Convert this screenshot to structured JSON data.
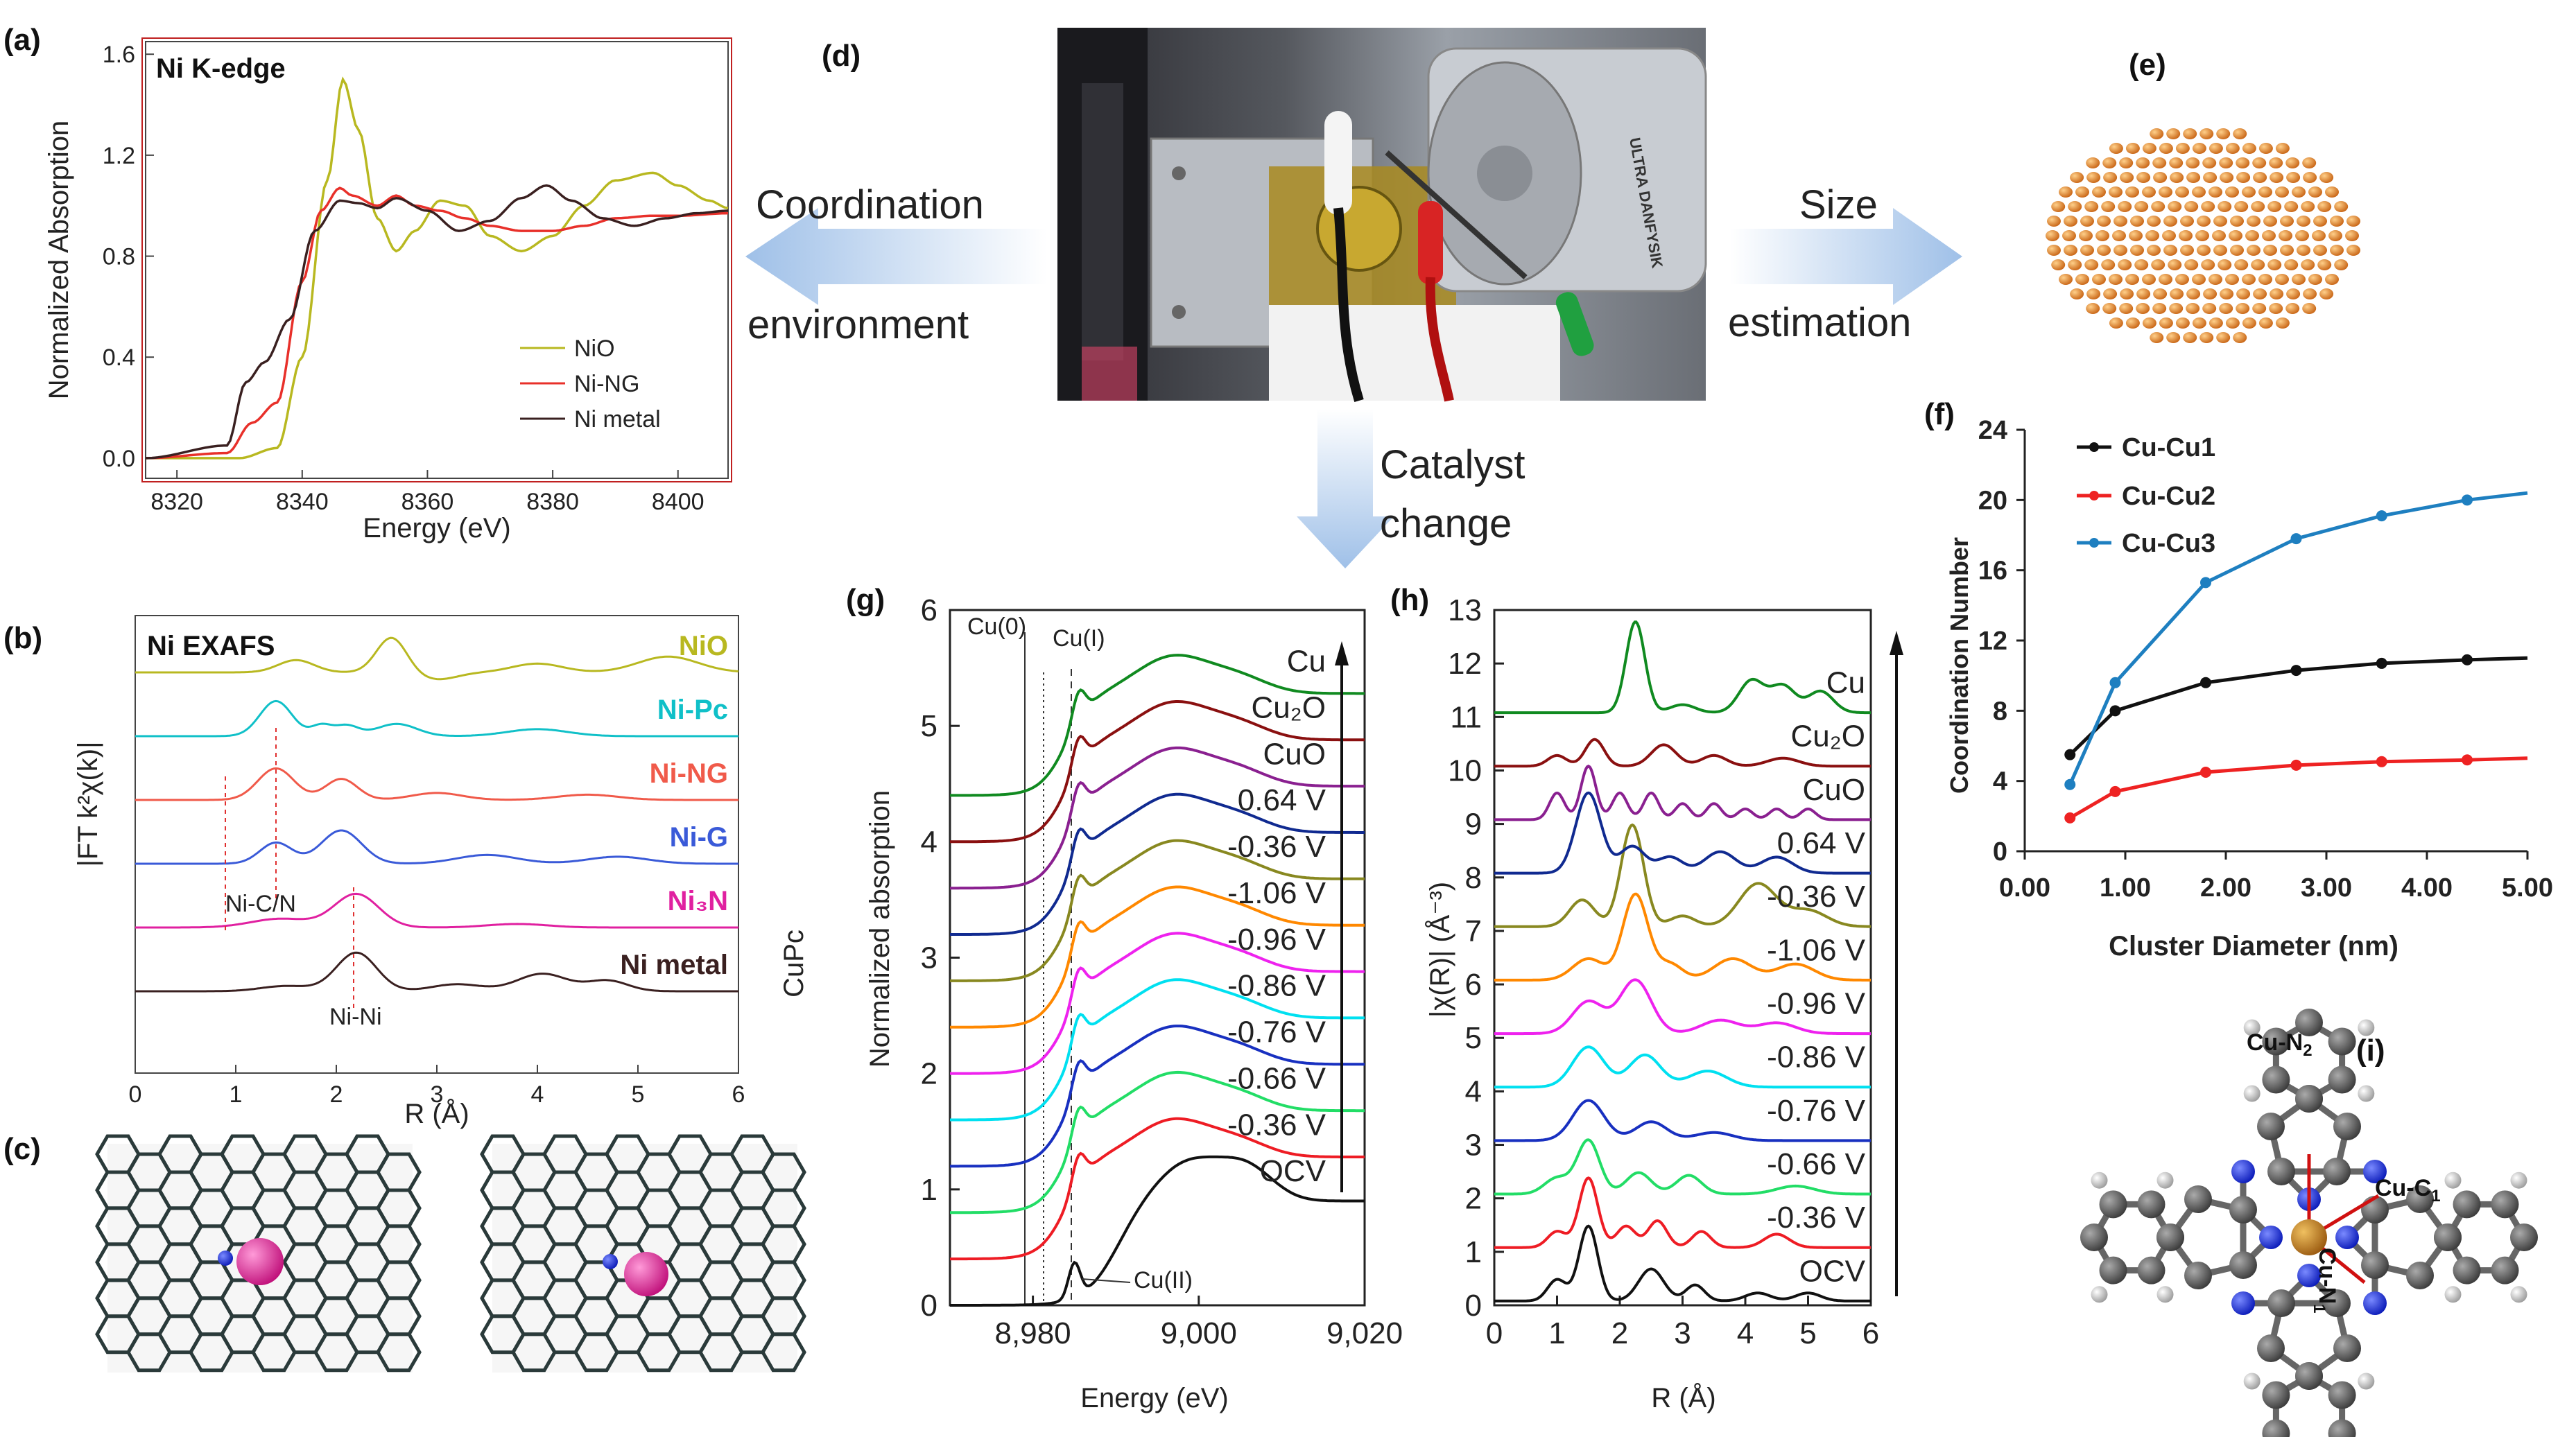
{
  "panels": {
    "a": "(a)",
    "b": "(b)",
    "c": "(c)",
    "d": "(d)",
    "e": "(e)",
    "f": "(f)",
    "g": "(g)",
    "h": "(h)",
    "i": "(i)"
  },
  "flow": {
    "left_line1": "Coordination",
    "left_line2": "environment",
    "right_line1": "Size",
    "right_line2": "estimation",
    "down_line1": "Catalyst",
    "down_line2": "change"
  },
  "photo": {
    "instrument_text": "ULTRA DANFYSIK"
  },
  "molecule_i": {
    "label_n2": "Cu-N2",
    "label_c1": "Cu-C1",
    "label_n1": "Cu-N1"
  },
  "chart_data": [
    {
      "id": "a",
      "type": "line",
      "title": "Ni K-edge",
      "xlabel": "Energy (eV)",
      "ylabel": "Normalized Absorption",
      "xlim": [
        8315,
        8408
      ],
      "ylim": [
        -0.08,
        1.65
      ],
      "xticks": [
        "8320",
        "8340",
        "8360",
        "8380",
        "8400"
      ],
      "yticks": [
        "0.0",
        "0.4",
        "0.8",
        "1.2",
        "1.6"
      ],
      "legend": [
        "NiO",
        "Ni-NG",
        "Ni metal"
      ],
      "series": [
        {
          "name": "NiO",
          "color": "#b8b820",
          "x": [
            8315,
            8330,
            8336,
            8340,
            8344,
            8346.5,
            8349,
            8352,
            8355,
            8358,
            8362,
            8366,
            8370,
            8375,
            8380,
            8385,
            8390,
            8396,
            8400,
            8405,
            8408
          ],
          "y": [
            0,
            0,
            0.04,
            0.4,
            1.1,
            1.5,
            1.3,
            0.95,
            0.82,
            0.9,
            1.02,
            1.0,
            0.88,
            0.82,
            0.88,
            1.0,
            1.1,
            1.13,
            1.08,
            1.02,
            0.99
          ]
        },
        {
          "name": "Ni-NG",
          "color": "#e8302a",
          "x": [
            8315,
            8328,
            8332,
            8336,
            8340,
            8343,
            8346,
            8348,
            8352,
            8355,
            8358,
            8362,
            8366,
            8370,
            8375,
            8380,
            8385,
            8390,
            8396,
            8400,
            8408
          ],
          "y": [
            0,
            0.02,
            0.14,
            0.22,
            0.7,
            0.98,
            1.07,
            1.04,
            1.0,
            1.04,
            1.0,
            0.98,
            0.95,
            0.92,
            0.9,
            0.9,
            0.92,
            0.95,
            0.96,
            0.96,
            0.97
          ]
        },
        {
          "name": "Ni metal",
          "color": "#3a2020",
          "x": [
            8315,
            8328,
            8331,
            8334,
            8338,
            8342,
            8346,
            8349,
            8352,
            8355,
            8360,
            8365,
            8370,
            8375,
            8379,
            8383,
            8388,
            8393,
            8398,
            8403,
            8408
          ],
          "y": [
            0,
            0.05,
            0.3,
            0.38,
            0.55,
            0.9,
            1.02,
            1.01,
            0.99,
            1.03,
            0.98,
            0.9,
            0.94,
            1.03,
            1.08,
            1.02,
            0.95,
            0.92,
            0.95,
            0.97,
            0.98
          ]
        }
      ]
    },
    {
      "id": "b",
      "type": "line",
      "title": "Ni EXAFS",
      "xlabel": "R (Å)",
      "ylabel": "|FT k²χ(k)|",
      "xlim": [
        0,
        6
      ],
      "xticks": [
        "0",
        "1",
        "2",
        "3",
        "4",
        "5",
        "6"
      ],
      "annotations": [
        "Ni-C/N",
        "Ni-Ni"
      ],
      "series": [
        {
          "name": "NiO",
          "label": "NiO",
          "color": "#b8b820",
          "offset": 5,
          "peaks": [
            [
              1.6,
              0.35,
              0.18
            ],
            [
              2.55,
              1.0,
              0.15
            ],
            [
              3.0,
              -0.2,
              0.2
            ],
            [
              4.0,
              0.25,
              0.25
            ],
            [
              5.3,
              0.45,
              0.3
            ]
          ]
        },
        {
          "name": "Ni-Pc",
          "label": "Ni-Pc",
          "color": "#10c0c8",
          "offset": 4,
          "peaks": [
            [
              1.4,
              1.0,
              0.16
            ],
            [
              1.85,
              0.3,
              0.1
            ],
            [
              2.1,
              0.3,
              0.12
            ],
            [
              2.6,
              0.35,
              0.2
            ],
            [
              4.0,
              0.2,
              0.3
            ]
          ]
        },
        {
          "name": "Ni-NG",
          "label": "Ni-NG",
          "color": "#f05a4a",
          "offset": 3,
          "peaks": [
            [
              1.4,
              0.9,
              0.18
            ],
            [
              2.05,
              0.6,
              0.16
            ],
            [
              3.0,
              0.2,
              0.25
            ],
            [
              4.5,
              0.15,
              0.3
            ]
          ]
        },
        {
          "name": "Ni-G",
          "label": "Ni-G",
          "color": "#3a5ad8",
          "offset": 2,
          "peaks": [
            [
              1.4,
              0.6,
              0.16
            ],
            [
              2.05,
              0.95,
              0.2
            ],
            [
              3.5,
              0.25,
              0.3
            ],
            [
              4.8,
              0.2,
              0.3
            ]
          ]
        },
        {
          "name": "Ni3N",
          "label": "Ni₃N",
          "color": "#e020a0",
          "offset": 1,
          "peaks": [
            [
              1.45,
              0.25,
              0.3
            ],
            [
              2.2,
              0.95,
              0.22
            ],
            [
              3.8,
              0.1,
              0.3
            ]
          ]
        },
        {
          "name": "Ni metal",
          "label": "Ni metal",
          "color": "#3a2020",
          "offset": 0,
          "peaks": [
            [
              1.5,
              0.15,
              0.25
            ],
            [
              2.2,
              1.1,
              0.2
            ],
            [
              3.2,
              0.2,
              0.25
            ],
            [
              4.05,
              0.5,
              0.25
            ],
            [
              4.7,
              0.3,
              0.2
            ]
          ]
        }
      ]
    },
    {
      "id": "f",
      "type": "line",
      "xlabel": "Cluster Diameter (nm)",
      "ylabel": "Coordination Number",
      "xlim": [
        0,
        5
      ],
      "ylim": [
        0,
        24
      ],
      "xticks": [
        "0.00",
        "1.00",
        "2.00",
        "3.00",
        "4.00",
        "5.00"
      ],
      "yticks": [
        "0",
        "4",
        "8",
        "12",
        "16",
        "20",
        "24"
      ],
      "legend": [
        "Cu-Cu1",
        "Cu-Cu2",
        "Cu-Cu3"
      ],
      "series": [
        {
          "name": "Cu-Cu1",
          "color": "#111111",
          "x": [
            0.45,
            0.9,
            1.8,
            2.7,
            3.55,
            4.4,
            5.0
          ],
          "y": [
            5.5,
            8.0,
            9.6,
            10.3,
            10.7,
            10.9,
            11.0
          ]
        },
        {
          "name": "Cu-Cu2",
          "color": "#ee2222",
          "x": [
            0.45,
            0.9,
            1.8,
            2.7,
            3.55,
            4.4,
            5.0
          ],
          "y": [
            1.9,
            3.4,
            4.5,
            4.9,
            5.1,
            5.2,
            5.3
          ]
        },
        {
          "name": "Cu-Cu3",
          "color": "#1e7fc0",
          "x": [
            0.45,
            0.9,
            1.8,
            2.7,
            3.55,
            4.4,
            5.0
          ],
          "y": [
            3.8,
            9.6,
            15.3,
            17.8,
            19.1,
            20.0,
            20.4
          ]
        }
      ]
    },
    {
      "id": "g",
      "type": "line",
      "side_label": "CuPc",
      "xlabel": "Energy (eV)",
      "ylabel": "Normalized absorption",
      "xlim": [
        8970,
        9020
      ],
      "ylim": [
        0,
        6
      ],
      "xticks": [
        "8,980",
        "9,000",
        "9,020"
      ],
      "yticks": [
        "0",
        "1",
        "2",
        "3",
        "4",
        "5",
        "6"
      ],
      "annotations": [
        "Cu(0)",
        "Cu(I)",
        "Cu(II)"
      ],
      "series": [
        {
          "name": "OCV",
          "label": "OCV",
          "color": "#111111",
          "offset": 0.0
        },
        {
          "name": "-0.36 V",
          "label": "-0.36 V",
          "color": "#ee1c24",
          "offset": 0.4
        },
        {
          "name": "-0.66 V",
          "label": "-0.66 V",
          "color": "#22dd66",
          "offset": 0.8
        },
        {
          "name": "-0.76 V",
          "label": "-0.76 V",
          "color": "#1830c0",
          "offset": 1.2
        },
        {
          "name": "-0.86 V",
          "label": "-0.86 V",
          "color": "#00e0f0",
          "offset": 1.6
        },
        {
          "name": "-0.96 V",
          "label": "-0.96 V",
          "color": "#ee22ee",
          "offset": 2.0
        },
        {
          "name": "-1.06 V",
          "label": "-1.06 V",
          "color": "#ff8800",
          "offset": 2.4
        },
        {
          "name": "-0.36 V (reverse)",
          "label": "-0.36 V",
          "color": "#888820",
          "offset": 2.8
        },
        {
          "name": "0.64 V",
          "label": "0.64 V",
          "color": "#102a90",
          "offset": 3.2
        },
        {
          "name": "CuO",
          "label": "CuO",
          "color": "#8a2090",
          "offset": 3.6
        },
        {
          "name": "Cu2O",
          "label": "Cu₂O",
          "color": "#8a1010",
          "offset": 4.0
        },
        {
          "name": "Cu",
          "label": "Cu",
          "color": "#108a20",
          "offset": 4.4
        }
      ]
    },
    {
      "id": "h",
      "type": "line",
      "xlabel": "R (Å)",
      "ylabel": "|χ(R)| (Å⁻³)",
      "xlim": [
        0,
        6
      ],
      "ylim": [
        0,
        13
      ],
      "xticks": [
        "0",
        "1",
        "2",
        "3",
        "4",
        "5",
        "6"
      ],
      "yticks": [
        "0",
        "1",
        "2",
        "3",
        "4",
        "5",
        "6",
        "7",
        "8",
        "9",
        "10",
        "11",
        "12",
        "13"
      ],
      "series": [
        {
          "name": "OCV",
          "label": "OCV",
          "color": "#111111",
          "offset": 0,
          "peaks": [
            [
              1.0,
              0.4,
              0.15
            ],
            [
              1.5,
              1.4,
              0.15
            ],
            [
              2.5,
              0.6,
              0.2
            ],
            [
              3.2,
              0.3,
              0.15
            ],
            [
              4.2,
              0.15,
              0.2
            ],
            [
              5.0,
              0.15,
              0.2
            ]
          ]
        },
        {
          "name": "-0.36 V",
          "label": "-0.36 V",
          "color": "#ee1c24",
          "offset": 1,
          "peaks": [
            [
              1.0,
              0.3,
              0.15
            ],
            [
              1.5,
              1.3,
              0.15
            ],
            [
              2.1,
              0.4,
              0.15
            ],
            [
              2.6,
              0.5,
              0.15
            ],
            [
              3.3,
              0.3,
              0.15
            ],
            [
              4.5,
              0.25,
              0.2
            ]
          ]
        },
        {
          "name": "-0.66 V",
          "label": "-0.66 V",
          "color": "#22dd66",
          "offset": 2,
          "peaks": [
            [
              1.0,
              0.3,
              0.2
            ],
            [
              1.5,
              1.0,
              0.18
            ],
            [
              2.3,
              0.4,
              0.2
            ],
            [
              3.1,
              0.35,
              0.2
            ],
            [
              4.8,
              0.15,
              0.3
            ]
          ]
        },
        {
          "name": "-0.76 V",
          "label": "-0.76 V",
          "color": "#1830c0",
          "offset": 3,
          "peaks": [
            [
              1.5,
              0.75,
              0.25
            ],
            [
              2.5,
              0.35,
              0.25
            ],
            [
              3.5,
              0.15,
              0.3
            ]
          ]
        },
        {
          "name": "-0.86 V",
          "label": "-0.86 V",
          "color": "#00e0f0",
          "offset": 4,
          "peaks": [
            [
              1.5,
              0.75,
              0.25
            ],
            [
              2.4,
              0.6,
              0.25
            ],
            [
              3.4,
              0.3,
              0.3
            ]
          ]
        },
        {
          "name": "-0.96 V",
          "label": "-0.96 V",
          "color": "#ee22ee",
          "offset": 5,
          "peaks": [
            [
              1.5,
              0.6,
              0.25
            ],
            [
              2.25,
              1.0,
              0.25
            ],
            [
              3.6,
              0.25,
              0.3
            ],
            [
              4.5,
              0.2,
              0.3
            ]
          ]
        },
        {
          "name": "-1.06 V",
          "label": "-1.06 V",
          "color": "#ff8800",
          "offset": 6,
          "peaks": [
            [
              1.5,
              0.4,
              0.25
            ],
            [
              2.25,
              1.6,
              0.2
            ],
            [
              2.8,
              0.3,
              0.2
            ],
            [
              3.8,
              0.4,
              0.3
            ],
            [
              4.8,
              0.3,
              0.3
            ]
          ]
        },
        {
          "name": "-0.36 V (reverse)",
          "label": "-0.36 V",
          "color": "#888820",
          "offset": 7,
          "peaks": [
            [
              1.4,
              0.5,
              0.2
            ],
            [
              2.2,
              1.9,
              0.18
            ],
            [
              3.0,
              0.2,
              0.2
            ],
            [
              4.2,
              0.8,
              0.3
            ],
            [
              5.0,
              0.3,
              0.3
            ]
          ]
        },
        {
          "name": "0.64 V",
          "label": "0.64 V",
          "color": "#102a90",
          "offset": 8,
          "peaks": [
            [
              1.5,
              1.5,
              0.2
            ],
            [
              2.2,
              0.5,
              0.2
            ],
            [
              2.8,
              0.3,
              0.2
            ],
            [
              3.6,
              0.4,
              0.25
            ],
            [
              4.5,
              0.3,
              0.25
            ]
          ]
        },
        {
          "name": "CuO",
          "label": "CuO",
          "color": "#8a2090",
          "offset": 9,
          "peaks": [
            [
              1.0,
              0.5,
              0.12
            ],
            [
              1.5,
              1.0,
              0.12
            ],
            [
              2.0,
              0.5,
              0.12
            ],
            [
              2.5,
              0.5,
              0.12
            ],
            [
              3.0,
              0.3,
              0.12
            ],
            [
              3.5,
              0.3,
              0.12
            ],
            [
              4.0,
              0.2,
              0.12
            ],
            [
              4.5,
              0.2,
              0.12
            ],
            [
              5.0,
              0.2,
              0.12
            ]
          ]
        },
        {
          "name": "Cu2O",
          "label": "Cu₂O",
          "color": "#8a1010",
          "offset": 10,
          "peaks": [
            [
              1.0,
              0.2,
              0.15
            ],
            [
              1.6,
              0.5,
              0.15
            ],
            [
              2.7,
              0.4,
              0.2
            ],
            [
              3.5,
              0.2,
              0.2
            ],
            [
              4.6,
              0.15,
              0.25
            ]
          ]
        },
        {
          "name": "Cu",
          "label": "Cu",
          "color": "#108a20",
          "offset": 11,
          "peaks": [
            [
              2.25,
              1.7,
              0.15
            ],
            [
              3.0,
              0.15,
              0.2
            ],
            [
              4.1,
              0.6,
              0.2
            ],
            [
              4.6,
              0.5,
              0.2
            ],
            [
              5.2,
              0.4,
              0.2
            ]
          ]
        }
      ]
    }
  ]
}
